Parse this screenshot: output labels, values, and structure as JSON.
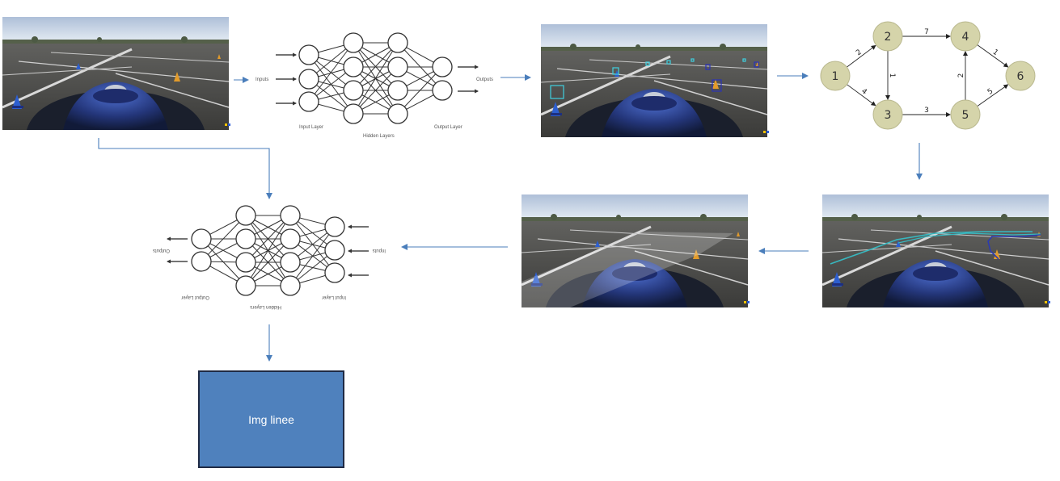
{
  "colors": {
    "arrow": "#4a7ebb",
    "node_fill": "#d5d4aa",
    "node_stroke": "#b9b88e",
    "box_fill": "#4f81bd",
    "box_border": "#1f2a44",
    "detect_cyan": "#3fd0e0",
    "detect_blue": "#2a32b8",
    "path_teal": "#37b8c0",
    "path_blue": "#2c3bb0"
  },
  "nn_forward": {
    "inputs_label": "Inputs",
    "outputs_label": "Outputs",
    "input_layer": "Input Layer",
    "hidden_layers": "Hidden Layers",
    "output_layer": "Output Layer"
  },
  "nn_mirrored": {
    "inputs_label": "Inputs",
    "outputs_label": "Outputs",
    "input_layer": "Input Layer",
    "hidden_layers": "Hidden Layers",
    "output_layer": "Output Layer"
  },
  "graph": {
    "nodes": [
      "1",
      "2",
      "3",
      "4",
      "5",
      "6"
    ],
    "edges": [
      {
        "from": "1",
        "to": "2",
        "weight": "2"
      },
      {
        "from": "1",
        "to": "3",
        "weight": "4"
      },
      {
        "from": "2",
        "to": "3",
        "weight": "1"
      },
      {
        "from": "2",
        "to": "4",
        "weight": "7"
      },
      {
        "from": "3",
        "to": "5",
        "weight": "3"
      },
      {
        "from": "5",
        "to": "4",
        "weight": "2"
      },
      {
        "from": "4",
        "to": "6",
        "weight": "1"
      },
      {
        "from": "5",
        "to": "6",
        "weight": "5"
      }
    ]
  },
  "output_box": {
    "label": "Img linee"
  },
  "photos": {
    "raw_camera": "raw-camera-image",
    "detections": "cone-detections-image",
    "planned_path": "planned-path-image",
    "track_area": "track-area-image"
  }
}
